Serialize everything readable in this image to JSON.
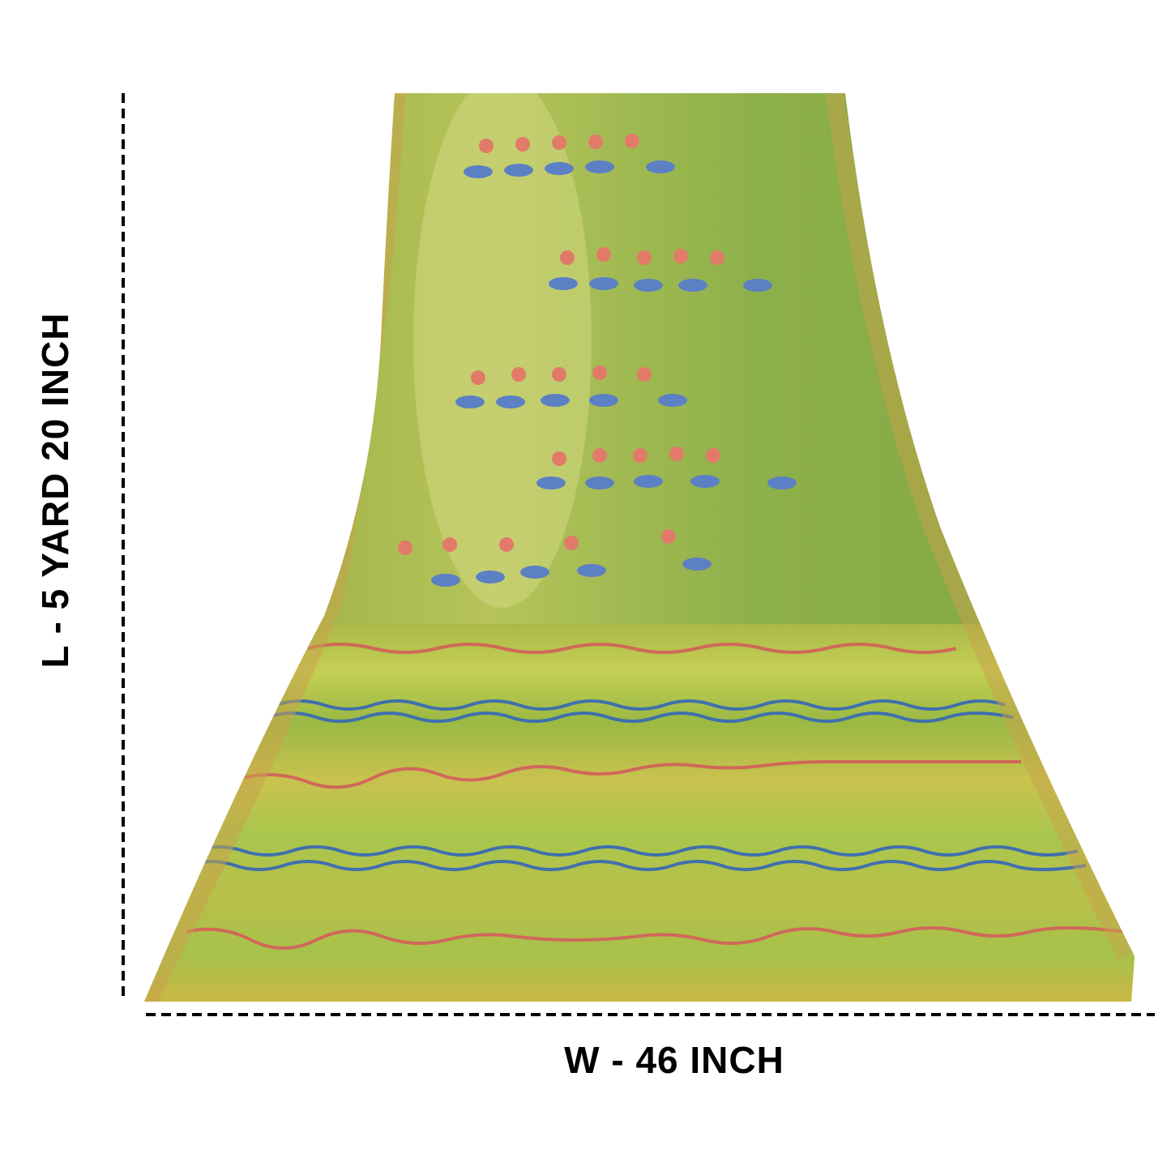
{
  "labels": {
    "length": "L - 5 YARD 20 INCH",
    "width": "W - 46 INCH"
  }
}
